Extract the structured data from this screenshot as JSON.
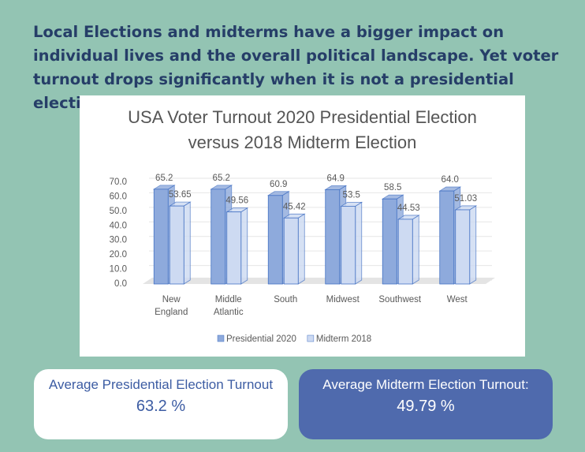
{
  "heading": "Local Elections and midterms have a bigger impact on individual lives and the overall political landscape. Yet voter turnout drops significantly when it is not a presidential election.",
  "chart_data": {
    "type": "bar3d",
    "title": "USA Voter Turnout 2020 Presidential Election versus 2018 Midterm Election",
    "categories": [
      "New England",
      "Middle Atlantic",
      "South",
      "Midwest",
      "Southwest",
      "West"
    ],
    "series": [
      {
        "name": "Presidential 2020",
        "color": "#8eaadc",
        "values": [
          65.2,
          65.2,
          60.9,
          64.9,
          58.5,
          64
        ],
        "value_labels": [
          "65.2",
          "65.2",
          "60.9",
          "64.9",
          "58.5",
          "64.0"
        ]
      },
      {
        "name": "Midterm 2018",
        "color": "#cddaf2",
        "values": [
          53.65,
          49.56,
          45.42,
          53.5,
          44.53,
          51.03
        ],
        "value_labels": [
          "53.65",
          "49.56",
          "45.42",
          "53.5",
          "44.53",
          "51.03"
        ]
      }
    ],
    "ylim": [
      0,
      70
    ],
    "yticks": [
      {
        "value": 0,
        "label": "0.0"
      },
      {
        "value": 10,
        "label": "10.0"
      },
      {
        "value": 20,
        "label": "20.0"
      },
      {
        "value": 30,
        "label": "30.0"
      },
      {
        "value": 40,
        "label": "40.0"
      },
      {
        "value": 50,
        "label": "50.0"
      },
      {
        "value": 60,
        "label": "60.0"
      },
      {
        "value": 70,
        "label": "70.0"
      }
    ],
    "grid": true,
    "legend": "bottom"
  },
  "cards": [
    {
      "label": "Average Presidential Election Turnout",
      "value": "63.2 %"
    },
    {
      "label": "Average Midterm Election Turnout:",
      "value": "49.79 %"
    }
  ]
}
